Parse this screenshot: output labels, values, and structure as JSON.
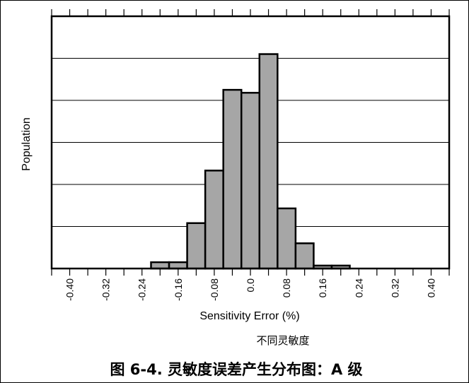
{
  "chart_data": {
    "type": "bar",
    "title": "",
    "xlabel": "Sensitivity Error (%)",
    "ylabel": "Population",
    "x_tick_labels": [
      "-0.40",
      "-0.32",
      "-0.24",
      "-0.16",
      "-0.08",
      "0.0",
      "0.08",
      "0.16",
      "0.24",
      "0.32",
      "0.40"
    ],
    "xlim": [
      -0.44,
      0.44
    ],
    "ylim": [
      0,
      6
    ],
    "grid": "horizontal",
    "bins": [
      {
        "x0": -0.22,
        "x1": -0.18,
        "value": 0.15
      },
      {
        "x0": -0.18,
        "x1": -0.14,
        "value": 0.15
      },
      {
        "x0": -0.14,
        "x1": -0.1,
        "value": 1.08
      },
      {
        "x0": -0.1,
        "x1": -0.06,
        "value": 2.33
      },
      {
        "x0": -0.06,
        "x1": -0.02,
        "value": 4.25
      },
      {
        "x0": -0.02,
        "x1": 0.02,
        "value": 4.18
      },
      {
        "x0": 0.02,
        "x1": 0.06,
        "value": 5.1
      },
      {
        "x0": 0.06,
        "x1": 0.1,
        "value": 1.43
      },
      {
        "x0": 0.1,
        "x1": 0.14,
        "value": 0.6
      },
      {
        "x0": 0.14,
        "x1": 0.18,
        "value": 0.07
      },
      {
        "x0": 0.18,
        "x1": 0.22,
        "value": 0.07
      }
    ],
    "bar_fill": "#a6a6a6",
    "bar_stroke": "#000000"
  },
  "annotation": "不同灵敏度",
  "caption": "图 6-4. 灵敏度误差产生分布图：A 级"
}
